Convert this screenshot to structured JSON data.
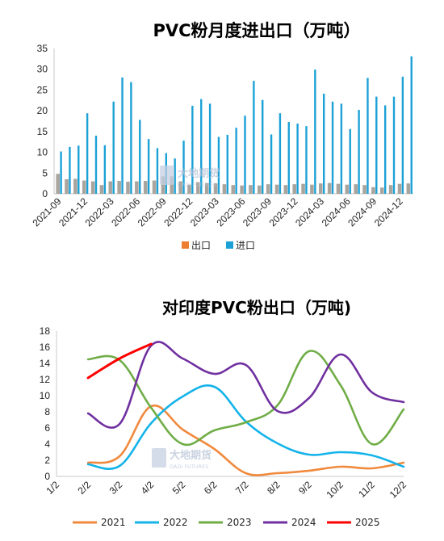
{
  "chart_data": [
    {
      "type": "bar",
      "title": "PVC粉月度进出口（万吨）",
      "categories": [
        "2021-09",
        "2021-10",
        "2021-11",
        "2021-12",
        "2022-01",
        "2022-02",
        "2022-03",
        "2022-04",
        "2022-05",
        "2022-06",
        "2022-07",
        "2022-08",
        "2022-09",
        "2022-10",
        "2022-11",
        "2022-12",
        "2023-01",
        "2023-02",
        "2023-03",
        "2023-04",
        "2023-05",
        "2023-06",
        "2023-07",
        "2023-08",
        "2023-09",
        "2023-10",
        "2023-11",
        "2023-12",
        "2024-01",
        "2024-02",
        "2024-03",
        "2024-04",
        "2024-05",
        "2024-06",
        "2024-07",
        "2024-08",
        "2024-09",
        "2024-10",
        "2024-11",
        "2024-12",
        "2025-01"
      ],
      "tick_labels": [
        "2021-09",
        "2021-12",
        "2022-03",
        "2022-06",
        "2022-09",
        "2022-12",
        "2023-03",
        "2023-06",
        "2023-09",
        "2023-12",
        "2024-03",
        "2024-06",
        "2024-09",
        "2024-12"
      ],
      "series": [
        {
          "name": "出口",
          "color": "#ed7d31",
          "values": [
            4.8,
            3.5,
            3.6,
            3.2,
            3.0,
            2.1,
            3.0,
            3.1,
            2.9,
            3.0,
            3.1,
            3.2,
            4.2,
            4.2,
            3.0,
            2.2,
            2.8,
            2.6,
            2.5,
            2.3,
            2.1,
            2.0,
            2.1,
            2.0,
            2.3,
            2.2,
            2.1,
            2.3,
            2.4,
            2.2,
            2.5,
            2.6,
            2.4,
            2.2,
            2.3,
            2.1,
            1.6,
            1.5,
            2.1,
            2.4,
            2.5
          ]
        },
        {
          "name": "进口",
          "color": "#1ba1d6",
          "values": [
            10.2,
            11.3,
            11.6,
            19.4,
            14.0,
            11.7,
            22.2,
            28.0,
            26.9,
            17.8,
            13.2,
            11.0,
            9.8,
            8.5,
            12.8,
            21.2,
            22.8,
            21.7,
            13.7,
            14.2,
            15.9,
            18.8,
            27.2,
            22.6,
            14.3,
            19.4,
            17.3,
            16.9,
            16.3,
            29.9,
            24.1,
            22.2,
            21.7,
            15.6,
            20.2,
            27.9,
            23.4,
            21.3,
            23.4,
            28.2,
            33.1
          ]
        }
      ],
      "ylim": [
        0,
        35
      ],
      "yticks": [
        0,
        5,
        10,
        15,
        20,
        25,
        30,
        35
      ],
      "legend": "bottom",
      "grid": false
    },
    {
      "type": "line",
      "title": "对印度PVC粉出口（万吨)",
      "categories": [
        "1/2",
        "2/2",
        "3/2",
        "4/2",
        "5/2",
        "6/2",
        "7/2",
        "8/2",
        "9/2",
        "10/2",
        "11/2",
        "12/2"
      ],
      "series": [
        {
          "name": "2021",
          "color": "#f08a3e",
          "values": [
            null,
            1.7,
            2.5,
            8.7,
            5.8,
            3.4,
            0.4,
            0.4,
            0.7,
            1.2,
            1.0,
            1.7
          ]
        },
        {
          "name": "2022",
          "color": "#14b3e9",
          "values": [
            null,
            1.5,
            1.3,
            6.6,
            9.9,
            11.1,
            6.8,
            4.1,
            2.7,
            3.0,
            2.6,
            1.2
          ]
        },
        {
          "name": "2023",
          "color": "#70ad47",
          "values": [
            null,
            14.5,
            14.4,
            8.5,
            4.0,
            5.7,
            6.7,
            8.8,
            15.5,
            11.3,
            4.0,
            8.3
          ]
        },
        {
          "name": "2024",
          "color": "#7030a0",
          "values": [
            null,
            7.8,
            6.5,
            16.2,
            14.6,
            12.7,
            13.8,
            8.1,
            9.7,
            15.1,
            10.4,
            9.2
          ]
        },
        {
          "name": "2025",
          "color": "#ff0000",
          "values": [
            null,
            12.2,
            14.6,
            16.4,
            null,
            null,
            null,
            null,
            null,
            null,
            null,
            null
          ]
        }
      ],
      "ylim": [
        0,
        18
      ],
      "yticks": [
        0,
        2,
        4,
        6,
        8,
        10,
        12,
        14,
        16,
        18
      ],
      "legend": "bottom",
      "grid": false
    }
  ],
  "watermark": {
    "cn": "大地期货",
    "en": "DADI FUTURES"
  }
}
